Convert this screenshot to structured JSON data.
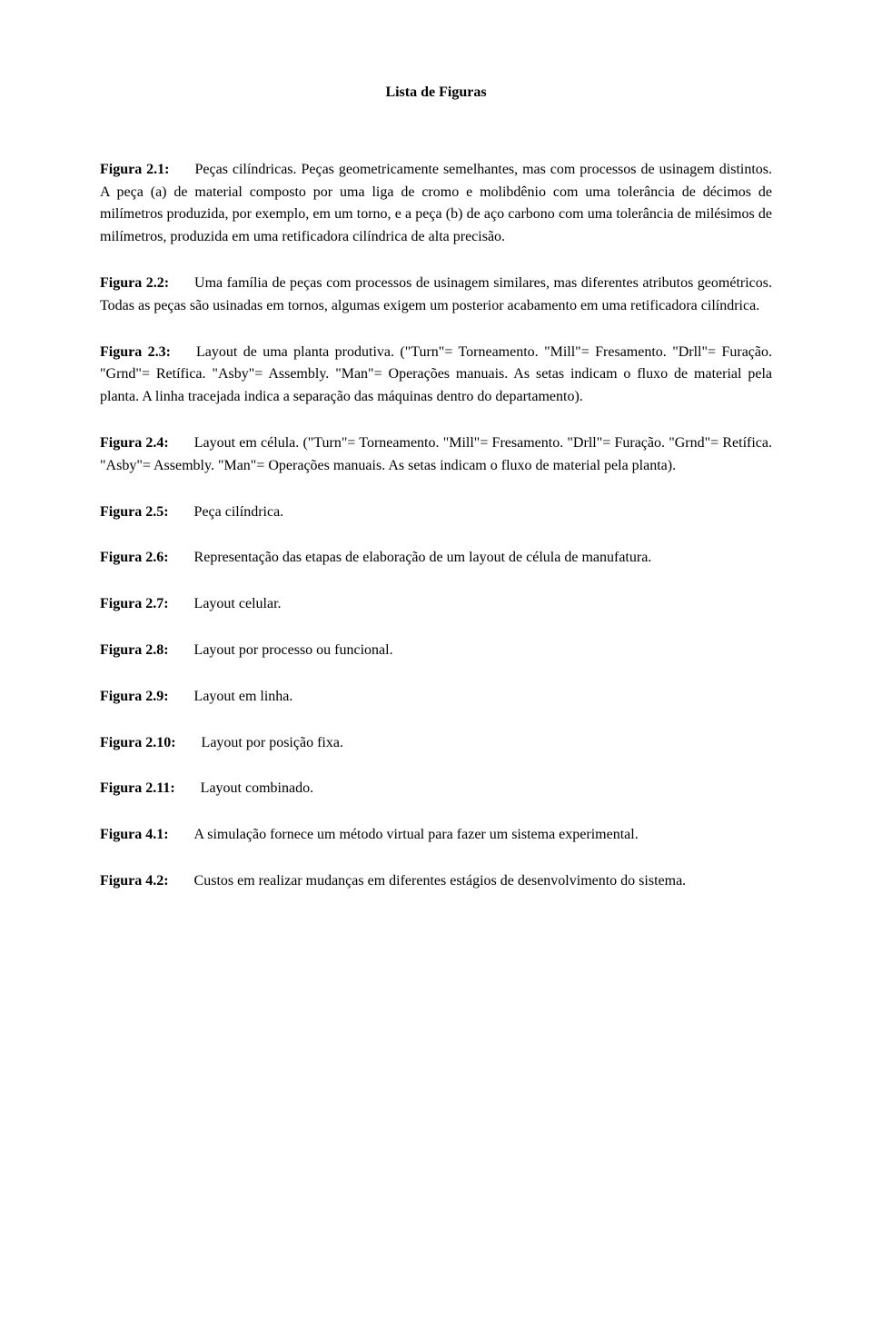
{
  "title": "Lista de Figuras",
  "entries": [
    {
      "label": "Figura 2.1:",
      "text": "Peças cilíndricas. Peças geometricamente semelhantes, mas com processos de usinagem distintos. A peça (a) de material composto por uma liga de cromo e molibdênio com uma tolerância de décimos de milímetros produzida, por exemplo, em um torno, e a peça (b) de aço carbono com uma tolerância de milésimos de milímetros, produzida em uma retificadora cilíndrica de alta precisão."
    },
    {
      "label": "Figura 2.2:",
      "text": "Uma família de peças com processos de usinagem similares, mas diferentes atributos geométricos. Todas as peças são usinadas em tornos, algumas exigem um posterior acabamento em uma retificadora cilíndrica."
    },
    {
      "label": "Figura 2.3:",
      "text": "Layout de uma planta produtiva. (\"Turn\"= Torneamento. \"Mill\"= Fresamento. \"Drll\"= Furação. \"Grnd\"= Retífica. \"Asby\"= Assembly. \"Man\"= Operações manuais. As setas indicam o fluxo de material pela planta. A linha tracejada indica a separação das máquinas dentro do departamento)."
    },
    {
      "label": "Figura 2.4:",
      "text": "Layout em célula. (\"Turn\"= Torneamento. \"Mill\"= Fresamento. \"Drll\"= Furação. \"Grnd\"= Retífica. \"Asby\"= Assembly. \"Man\"= Operações manuais. As setas indicam o fluxo de material pela planta)."
    },
    {
      "label": "Figura 2.5:",
      "text": "Peça cilíndrica."
    },
    {
      "label": "Figura 2.6:",
      "text": "Representação das etapas de elaboração de um layout de célula de manufatura."
    },
    {
      "label": "Figura 2.7:",
      "text": "Layout celular."
    },
    {
      "label": "Figura 2.8:",
      "text": "Layout por processo ou funcional."
    },
    {
      "label": "Figura 2.9:",
      "text": "Layout em linha."
    },
    {
      "label": "Figura 2.10:",
      "text": "Layout por posição fixa."
    },
    {
      "label": "Figura 2.11:",
      "text": "Layout combinado."
    },
    {
      "label": "Figura 4.1:",
      "text": "A simulação fornece um método virtual para fazer um sistema experimental."
    },
    {
      "label": "Figura 4.2:",
      "text": "Custos em realizar mudanças em diferentes estágios de desenvolvimento do sistema."
    }
  ]
}
